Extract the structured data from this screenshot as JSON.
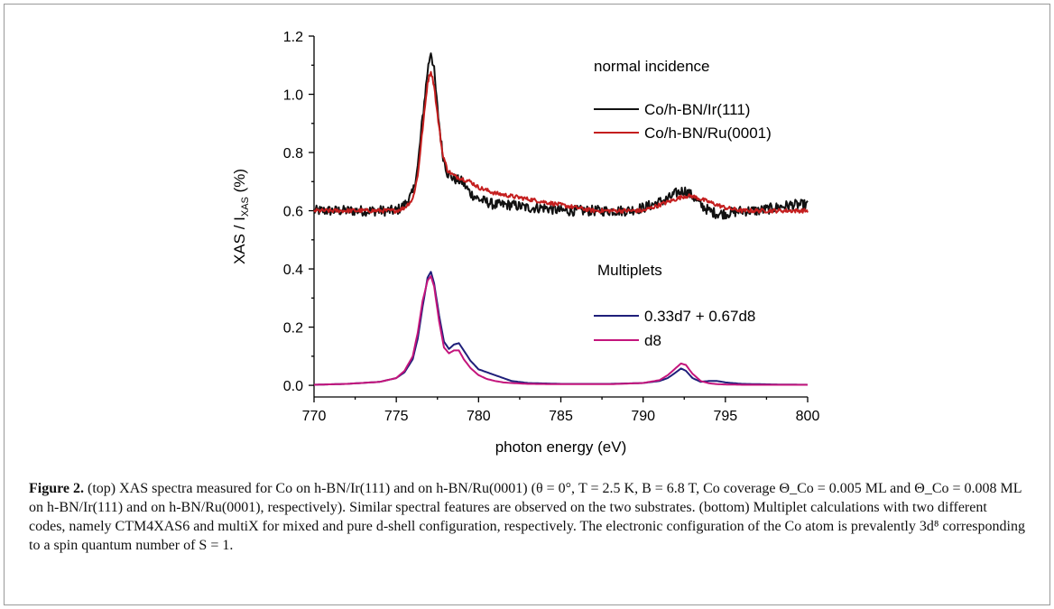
{
  "chart_data": {
    "type": "line",
    "xlabel": "photon energy (eV)",
    "ylabel": "XAS / I",
    "ylabel_subscript": "XAS",
    "ylabel_unit": "(%)",
    "xlim": [
      770,
      800
    ],
    "ylim": [
      -0.04,
      1.2
    ],
    "xticks": [
      770,
      775,
      780,
      785,
      790,
      795,
      800
    ],
    "yticks": [
      0.0,
      0.2,
      0.4,
      0.6,
      0.8,
      1.0,
      1.2
    ],
    "ytick_labels": [
      "0.0",
      "0.2",
      "0.4",
      "0.6",
      "0.8",
      "1.0",
      "1.2"
    ],
    "annotations": [
      "normal incidence",
      "Multiplets"
    ],
    "legend_position": "right",
    "series": [
      {
        "name": "Co/h-BN/Ir(111)",
        "color": "#111111",
        "x": [
          770,
          771,
          772,
          773,
          774,
          775,
          775.5,
          776,
          776.3,
          776.6,
          776.9,
          777.1,
          777.3,
          777.5,
          777.8,
          778.1,
          778.5,
          779,
          779.5,
          780,
          780.5,
          781,
          782,
          783,
          784,
          785,
          786,
          787,
          788,
          789,
          790,
          790.5,
          791,
          791.5,
          792,
          792.5,
          793,
          793.5,
          794,
          794.5,
          795,
          796,
          797,
          798,
          799,
          800
        ],
        "y": [
          0.6,
          0.6,
          0.6,
          0.6,
          0.6,
          0.6,
          0.62,
          0.66,
          0.75,
          0.92,
          1.08,
          1.15,
          1.08,
          0.95,
          0.8,
          0.73,
          0.71,
          0.7,
          0.66,
          0.64,
          0.63,
          0.62,
          0.62,
          0.61,
          0.61,
          0.6,
          0.6,
          0.6,
          0.6,
          0.6,
          0.61,
          0.62,
          0.63,
          0.64,
          0.66,
          0.67,
          0.65,
          0.62,
          0.6,
          0.59,
          0.59,
          0.6,
          0.6,
          0.61,
          0.62,
          0.62
        ]
      },
      {
        "name": "Co/h-BN/Ru(0001)",
        "color": "#c41e1e",
        "x": [
          770,
          771,
          772,
          773,
          774,
          775,
          775.5,
          776,
          776.3,
          776.6,
          776.9,
          777.1,
          777.3,
          777.5,
          777.8,
          778.1,
          778.5,
          779,
          779.5,
          780,
          780.5,
          781,
          782,
          783,
          784,
          785,
          786,
          787,
          788,
          789,
          790,
          790.5,
          791,
          791.5,
          792,
          792.5,
          793,
          793.5,
          794,
          794.5,
          795,
          796,
          797,
          798,
          799,
          800
        ],
        "y": [
          0.6,
          0.6,
          0.6,
          0.6,
          0.6,
          0.6,
          0.61,
          0.64,
          0.72,
          0.88,
          1.04,
          1.08,
          1.03,
          0.93,
          0.8,
          0.74,
          0.72,
          0.71,
          0.7,
          0.68,
          0.67,
          0.66,
          0.65,
          0.64,
          0.63,
          0.62,
          0.61,
          0.6,
          0.6,
          0.6,
          0.6,
          0.61,
          0.62,
          0.63,
          0.64,
          0.65,
          0.65,
          0.64,
          0.63,
          0.62,
          0.61,
          0.6,
          0.6,
          0.6,
          0.6,
          0.6
        ]
      },
      {
        "name": "0.33d7 + 0.67d8",
        "color": "#1f1f7a",
        "x": [
          770,
          772,
          774,
          775,
          775.5,
          776,
          776.3,
          776.6,
          776.9,
          777.1,
          777.3,
          777.6,
          777.9,
          778.2,
          778.5,
          778.8,
          779.1,
          779.5,
          780,
          780.5,
          781,
          781.5,
          782,
          783,
          785,
          788,
          790,
          791,
          791.5,
          792,
          792.3,
          792.6,
          793,
          793.5,
          794,
          794.5,
          795,
          796,
          798,
          800
        ],
        "y": [
          0.002,
          0.005,
          0.012,
          0.025,
          0.045,
          0.09,
          0.16,
          0.27,
          0.37,
          0.39,
          0.35,
          0.24,
          0.15,
          0.125,
          0.14,
          0.145,
          0.12,
          0.085,
          0.055,
          0.045,
          0.035,
          0.025,
          0.015,
          0.008,
          0.005,
          0.005,
          0.008,
          0.015,
          0.025,
          0.045,
          0.058,
          0.05,
          0.025,
          0.012,
          0.015,
          0.015,
          0.01,
          0.005,
          0.003,
          0.002
        ]
      },
      {
        "name": "d8",
        "color": "#c4157c",
        "x": [
          770,
          772,
          774,
          775,
          775.5,
          776,
          776.3,
          776.6,
          776.9,
          777.1,
          777.3,
          777.6,
          777.9,
          778.2,
          778.5,
          778.8,
          779.1,
          779.5,
          780,
          780.5,
          781,
          781.5,
          782,
          783,
          785,
          788,
          790,
          791,
          791.5,
          792,
          792.3,
          792.6,
          793,
          793.5,
          794,
          794.5,
          795,
          796,
          798,
          800
        ],
        "y": [
          0.002,
          0.005,
          0.012,
          0.025,
          0.05,
          0.1,
          0.18,
          0.29,
          0.36,
          0.375,
          0.34,
          0.22,
          0.13,
          0.11,
          0.12,
          0.12,
          0.09,
          0.06,
          0.035,
          0.022,
          0.015,
          0.01,
          0.008,
          0.005,
          0.004,
          0.004,
          0.008,
          0.018,
          0.035,
          0.06,
          0.075,
          0.07,
          0.04,
          0.015,
          0.007,
          0.004,
          0.003,
          0.002,
          0.002,
          0.002
        ]
      }
    ]
  },
  "caption": {
    "label": "Figure 2.",
    "text": "(top) XAS spectra measured for Co on h-BN/Ir(111) and on h-BN/Ru(0001) (θ = 0°, T = 2.5 K, B = 6.8 T, Co coverage Θ_Co = 0.005 ML and Θ_Co = 0.008 ML on h-BN/Ir(111) and on h-BN/Ru(0001), respectively). Similar spectral features are observed on the two substrates. (bottom) Multiplet calculations with two different codes, namely CTM4XAS6 and multiX for mixed and pure d-shell configuration, respectively. The electronic configuration of the Co atom is prevalently 3d⁸ corresponding to a spin quantum number of S = 1."
  }
}
